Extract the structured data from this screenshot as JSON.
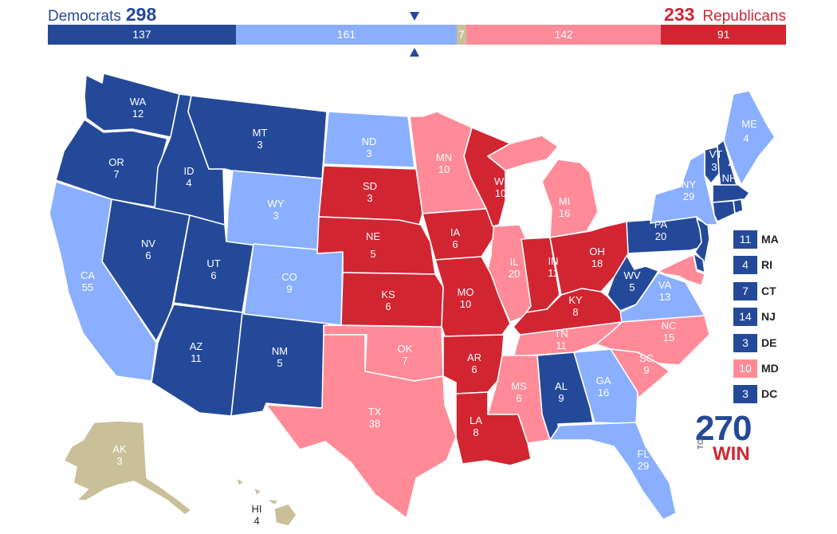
{
  "header": {
    "dem_label": "Democrats",
    "dem_total": "298",
    "rep_total": "233",
    "rep_label": "Republicans"
  },
  "colors": {
    "safe_dem": "#244999",
    "lean_dem": "#8AAFFF",
    "tossup": "#C9C09A",
    "lean_rep": "#FF8B98",
    "safe_rep": "#D22532"
  },
  "bar": [
    {
      "value": "137",
      "votes": 137,
      "color": "#244999"
    },
    {
      "value": "161",
      "votes": 161,
      "color": "#8AAFFF"
    },
    {
      "value": "7",
      "votes": 7,
      "color": "#C9C09A"
    },
    {
      "value": "142",
      "votes": 142,
      "color": "#FF8B98"
    },
    {
      "value": "91",
      "votes": 91,
      "color": "#D22532"
    }
  ],
  "states": {
    "WA": {
      "abbr": "WA",
      "ev": "12"
    },
    "OR": {
      "abbr": "OR",
      "ev": "7"
    },
    "CA": {
      "abbr": "CA",
      "ev": "55"
    },
    "ID": {
      "abbr": "ID",
      "ev": "4"
    },
    "NV": {
      "abbr": "NV",
      "ev": "6"
    },
    "MT": {
      "abbr": "MT",
      "ev": "3"
    },
    "WY": {
      "abbr": "WY",
      "ev": "3"
    },
    "UT": {
      "abbr": "UT",
      "ev": "6"
    },
    "AZ": {
      "abbr": "AZ",
      "ev": "11"
    },
    "CO": {
      "abbr": "CO",
      "ev": "9"
    },
    "NM": {
      "abbr": "NM",
      "ev": "5"
    },
    "ND": {
      "abbr": "ND",
      "ev": "3"
    },
    "SD": {
      "abbr": "SD",
      "ev": "3"
    },
    "NE": {
      "abbr": "NE",
      "ev": "5"
    },
    "KS": {
      "abbr": "KS",
      "ev": "6"
    },
    "OK": {
      "abbr": "OK",
      "ev": "7"
    },
    "TX": {
      "abbr": "TX",
      "ev": "38"
    },
    "MN": {
      "abbr": "MN",
      "ev": "10"
    },
    "IA": {
      "abbr": "IA",
      "ev": "6"
    },
    "MO": {
      "abbr": "MO",
      "ev": "10"
    },
    "AR": {
      "abbr": "AR",
      "ev": "6"
    },
    "LA": {
      "abbr": "LA",
      "ev": "8"
    },
    "WI": {
      "abbr": "WI",
      "ev": "10"
    },
    "IL": {
      "abbr": "IL",
      "ev": "20"
    },
    "MI": {
      "abbr": "MI",
      "ev": "16"
    },
    "IN": {
      "abbr": "IN",
      "ev": "11"
    },
    "OH": {
      "abbr": "OH",
      "ev": "18"
    },
    "KY": {
      "abbr": "KY",
      "ev": "8"
    },
    "TN": {
      "abbr": "TN",
      "ev": "11"
    },
    "MS": {
      "abbr": "MS",
      "ev": "6"
    },
    "AL": {
      "abbr": "AL",
      "ev": "9"
    },
    "GA": {
      "abbr": "GA",
      "ev": "16"
    },
    "FL": {
      "abbr": "FL",
      "ev": "29"
    },
    "SC": {
      "abbr": "SC",
      "ev": "9"
    },
    "NC": {
      "abbr": "NC",
      "ev": "15"
    },
    "VA": {
      "abbr": "VA",
      "ev": "13"
    },
    "WV": {
      "abbr": "WV",
      "ev": "5"
    },
    "PA": {
      "abbr": "PA",
      "ev": "20"
    },
    "NY": {
      "abbr": "NY",
      "ev": "29"
    },
    "VT": {
      "abbr": "VT",
      "ev": "3"
    },
    "NH": {
      "abbr": "NH",
      "ev": "4"
    },
    "ME": {
      "abbr": "ME",
      "ev": "4"
    },
    "AK": {
      "abbr": "AK",
      "ev": "3"
    },
    "HI": {
      "abbr": "HI",
      "ev": "4"
    }
  },
  "small_states": [
    {
      "ev": "11",
      "abbr": "MA",
      "color": "#244999"
    },
    {
      "ev": "4",
      "abbr": "RI",
      "color": "#244999"
    },
    {
      "ev": "7",
      "abbr": "CT",
      "color": "#244999"
    },
    {
      "ev": "14",
      "abbr": "NJ",
      "color": "#244999"
    },
    {
      "ev": "3",
      "abbr": "DE",
      "color": "#244999"
    },
    {
      "ev": "10",
      "abbr": "MD",
      "color": "#FF8B98"
    },
    {
      "ev": "3",
      "abbr": "DC",
      "color": "#244999"
    }
  ],
  "logo": {
    "number": "270",
    "to": "TO",
    "win": "WIN"
  }
}
